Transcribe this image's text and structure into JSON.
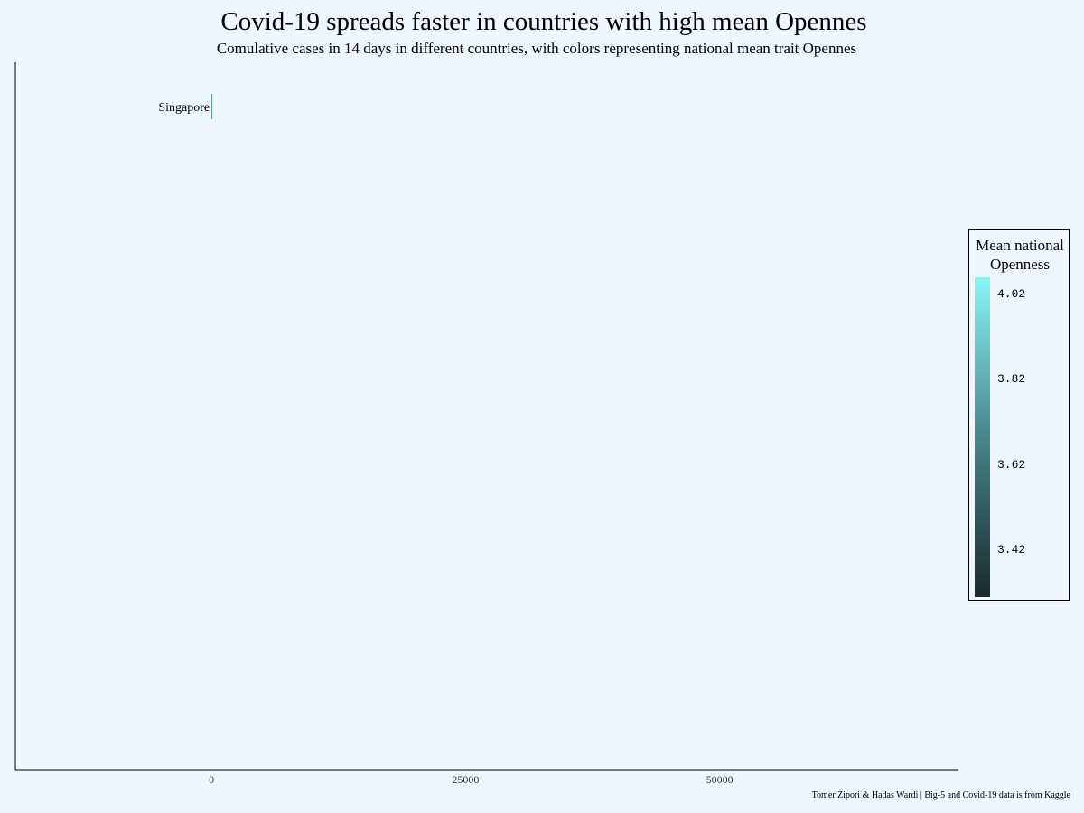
{
  "chart_data": {
    "type": "bar",
    "title": "Covid-19 spreads faster in countries with high mean Opennes",
    "subtitle": "Comulative cases in 14 days in different countries, with colors representing national mean trait Opennes",
    "caption": "Tomer Zipori & Hadas Wardi | Big-5 and Covid-19 data is from Kaggle",
    "orientation": "horizontal",
    "categories": [
      "Singapore"
    ],
    "values": [
      0
    ],
    "xlim": [
      -19300,
      73500
    ],
    "x_ticks": [
      0,
      25000,
      50000
    ],
    "x_tick_labels": [
      "0",
      "25000",
      "50000"
    ],
    "grid": false,
    "legend": {
      "placement": "right",
      "title": "Mean national Openness",
      "type": "colorbar",
      "min": 3.31,
      "max": 4.06,
      "ticks": [
        4.02,
        3.82,
        3.62,
        3.42
      ],
      "tick_labels": [
        "4.02",
        "3.82",
        "3.62",
        "3.42"
      ],
      "color_low": "#1b292b",
      "color_mid": "#47868a",
      "color_high": "#8af5f9"
    }
  }
}
